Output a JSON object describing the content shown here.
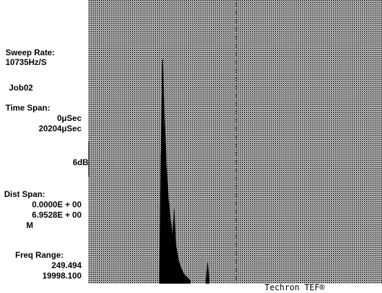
{
  "sidebar": {
    "sweep_rate_label": "Sweep Rate:",
    "sweep_rate_value": "10735Hz/S",
    "job": "Job02",
    "time_span_label": "Time Span:",
    "time_span_start": "0μSec",
    "time_span_end": "20204μSec",
    "scale": "6dB",
    "dist_span_label": "Dist Span:",
    "dist_span_start": "0.0000E + 00",
    "dist_span_end": "6.9528E + 00",
    "dist_unit": "M",
    "freq_range_label": "Freq Range:",
    "freq_range_start": "249.494",
    "freq_range_end": "19998.100"
  },
  "footer": {
    "brand": "Techron TEF®"
  },
  "colors": {
    "ink": "#000000",
    "paper": "#ffffff"
  },
  "chart_data": {
    "type": "line",
    "x_range_usec": [
      0,
      20204
    ],
    "x_range_m": [
      0.0,
      6.9528
    ],
    "grid": "dotted",
    "y_scale": "6 dB per division",
    "series": [
      {
        "x": [
          4900,
          5000,
          5100,
          5250,
          5400,
          5500,
          5650,
          5800,
          5900,
          6000,
          6200,
          6400,
          6600,
          6800,
          7000
        ],
        "y": [
          0.03,
          0.45,
          0.79,
          0.55,
          0.38,
          0.3,
          0.22,
          0.16,
          0.26,
          0.14,
          0.08,
          0.05,
          0.03,
          0.02,
          0.01
        ]
      },
      {
        "x": [
          8100,
          8150,
          8200,
          8250,
          8300
        ],
        "y": [
          0.01,
          0.04,
          0.07,
          0.04,
          0.01
        ]
      }
    ]
  }
}
